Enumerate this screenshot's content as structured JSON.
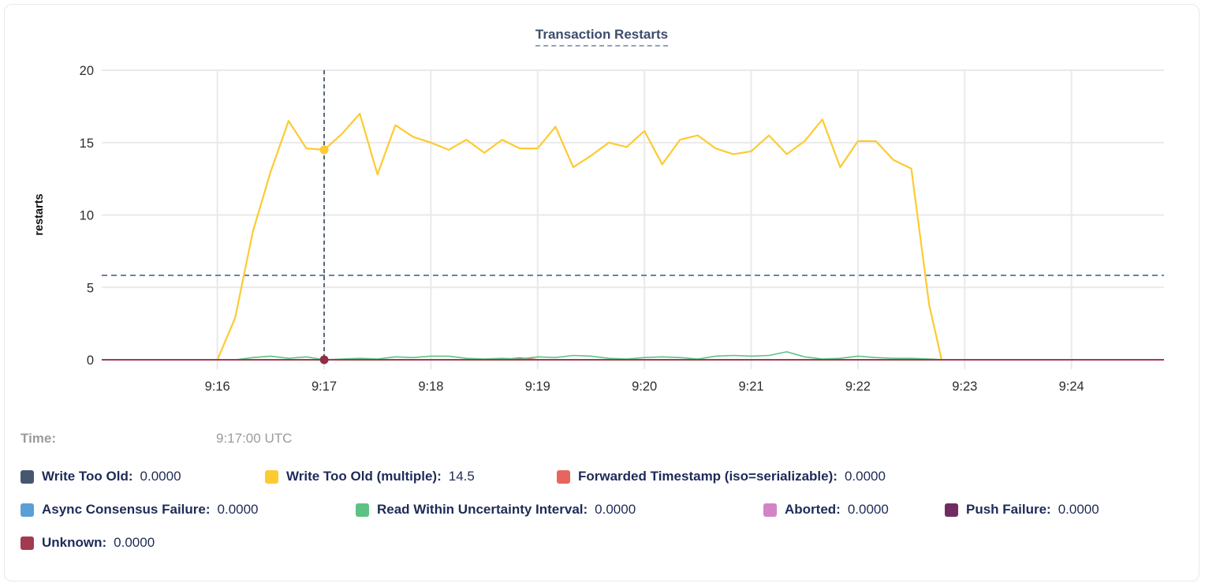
{
  "title": "Transaction Restarts",
  "time": {
    "label": "Time:",
    "value": "9:17:00 UTC"
  },
  "chart_data": {
    "type": "line",
    "title": "Transaction Restarts",
    "xlabel": "",
    "ylabel": "restarts",
    "ylim": [
      0,
      20
    ],
    "y_ticks": [
      0,
      5,
      10,
      15,
      20
    ],
    "x_ticks": [
      "9:16",
      "9:17",
      "9:18",
      "9:19",
      "9:20",
      "9:21",
      "9:22",
      "9:23",
      "9:24"
    ],
    "x_domain": [
      "9:14:55",
      "9:24:52"
    ],
    "grid": true,
    "threshold_line": {
      "value": 5.83,
      "style": "dashed",
      "color": "#6884a3"
    },
    "crosshair": {
      "time": "9:17:00",
      "color": "#33475e",
      "points": [
        {
          "series": "Write Too Old (multiple)",
          "value": 14.5,
          "color": "#fdca32"
        },
        {
          "series": "Unknown",
          "value": 0,
          "color": "#8e2f44"
        }
      ]
    },
    "series": [
      {
        "name": "Write Too Old",
        "color": "#475670",
        "width": 2,
        "points": [
          [
            "9:14:55",
            0
          ],
          [
            "9:24:52",
            0
          ]
        ]
      },
      {
        "name": "Async Consensus Failure",
        "color": "#5a9fd6",
        "width": 2,
        "points": [
          [
            "9:14:55",
            0
          ],
          [
            "9:24:52",
            0
          ]
        ]
      },
      {
        "name": "Aborted",
        "color": "#d483c6",
        "width": 2,
        "points": [
          [
            "9:14:55",
            0
          ],
          [
            "9:24:52",
            0
          ]
        ]
      },
      {
        "name": "Push Failure",
        "color": "#702b62",
        "width": 2,
        "points": [
          [
            "9:14:55",
            0
          ],
          [
            "9:24:52",
            0
          ]
        ]
      },
      {
        "name": "Forwarded Timestamp (iso=serializable)",
        "color": "#e8655f",
        "width": 2,
        "points": [
          [
            "9:14:55",
            0
          ],
          [
            "9:18:40",
            0
          ],
          [
            "9:18:50",
            0.12
          ],
          [
            "9:19:00",
            0
          ],
          [
            "9:24:52",
            0
          ]
        ]
      },
      {
        "name": "Read Within Uncertainty Interval",
        "color": "#5dc384",
        "width": 1.6,
        "points": [
          [
            "9:16:10",
            0
          ],
          [
            "9:16:20",
            0.15
          ],
          [
            "9:16:30",
            0.25
          ],
          [
            "9:16:40",
            0.1
          ],
          [
            "9:16:50",
            0.2
          ],
          [
            "9:17:00",
            0
          ],
          [
            "9:17:10",
            0.05
          ],
          [
            "9:17:20",
            0.1
          ],
          [
            "9:17:30",
            0.05
          ],
          [
            "9:17:40",
            0.2
          ],
          [
            "9:17:50",
            0.15
          ],
          [
            "9:18:00",
            0.25
          ],
          [
            "9:18:10",
            0.25
          ],
          [
            "9:18:20",
            0.1
          ],
          [
            "9:18:30",
            0.05
          ],
          [
            "9:18:40",
            0.1
          ],
          [
            "9:18:50",
            0.05
          ],
          [
            "9:19:00",
            0.2
          ],
          [
            "9:19:10",
            0.15
          ],
          [
            "9:19:20",
            0.3
          ],
          [
            "9:19:30",
            0.25
          ],
          [
            "9:19:40",
            0.1
          ],
          [
            "9:19:50",
            0.05
          ],
          [
            "9:20:00",
            0.15
          ],
          [
            "9:20:10",
            0.2
          ],
          [
            "9:20:20",
            0.15
          ],
          [
            "9:20:30",
            0.05
          ],
          [
            "9:20:40",
            0.25
          ],
          [
            "9:20:50",
            0.3
          ],
          [
            "9:21:00",
            0.25
          ],
          [
            "9:21:10",
            0.3
          ],
          [
            "9:21:20",
            0.55
          ],
          [
            "9:21:30",
            0.2
          ],
          [
            "9:21:40",
            0.05
          ],
          [
            "9:21:50",
            0.1
          ],
          [
            "9:22:00",
            0.25
          ],
          [
            "9:22:10",
            0.15
          ],
          [
            "9:22:20",
            0.1
          ],
          [
            "9:22:30",
            0.1
          ],
          [
            "9:22:40",
            0.05
          ],
          [
            "9:22:50",
            0
          ]
        ]
      },
      {
        "name": "Write Too Old (multiple)",
        "color": "#fdca32",
        "width": 2.2,
        "points": [
          [
            "9:16:00",
            0
          ],
          [
            "9:16:10",
            2.9
          ],
          [
            "9:16:20",
            8.9
          ],
          [
            "9:16:30",
            13.0
          ],
          [
            "9:16:40",
            16.5
          ],
          [
            "9:16:50",
            14.6
          ],
          [
            "9:17:00",
            14.5
          ],
          [
            "9:17:10",
            15.6
          ],
          [
            "9:17:20",
            17.0
          ],
          [
            "9:17:30",
            12.8
          ],
          [
            "9:17:40",
            16.2
          ],
          [
            "9:17:50",
            15.4
          ],
          [
            "9:18:00",
            15.0
          ],
          [
            "9:18:10",
            14.5
          ],
          [
            "9:18:20",
            15.2
          ],
          [
            "9:18:30",
            14.3
          ],
          [
            "9:18:40",
            15.2
          ],
          [
            "9:18:50",
            14.6
          ],
          [
            "9:19:00",
            14.6
          ],
          [
            "9:19:10",
            16.1
          ],
          [
            "9:19:20",
            13.3
          ],
          [
            "9:19:30",
            14.1
          ],
          [
            "9:19:40",
            15.0
          ],
          [
            "9:19:50",
            14.7
          ],
          [
            "9:20:00",
            15.8
          ],
          [
            "9:20:10",
            13.5
          ],
          [
            "9:20:20",
            15.2
          ],
          [
            "9:20:30",
            15.5
          ],
          [
            "9:20:40",
            14.6
          ],
          [
            "9:20:50",
            14.2
          ],
          [
            "9:21:00",
            14.4
          ],
          [
            "9:21:10",
            15.5
          ],
          [
            "9:21:20",
            14.2
          ],
          [
            "9:21:30",
            15.1
          ],
          [
            "9:21:40",
            16.6
          ],
          [
            "9:21:50",
            13.3
          ],
          [
            "9:22:00",
            15.1
          ],
          [
            "9:22:10",
            15.1
          ],
          [
            "9:22:20",
            13.8
          ],
          [
            "9:22:30",
            13.2
          ],
          [
            "9:22:40",
            3.8
          ],
          [
            "9:22:47",
            0
          ]
        ]
      },
      {
        "name": "Unknown",
        "color": "#a23a52",
        "width": 2,
        "points": [
          [
            "9:14:55",
            0
          ],
          [
            "9:24:52",
            0
          ]
        ]
      }
    ]
  },
  "legend": {
    "rows": [
      [
        {
          "label": "Write Too Old:",
          "value": "0.0000",
          "color": "#475670"
        },
        {
          "label": "Write Too Old (multiple):",
          "value": "14.5",
          "color": "#fdca32"
        },
        {
          "label": "Forwarded Timestamp (iso=serializable):",
          "value": "0.0000",
          "color": "#e8655f"
        }
      ],
      [
        {
          "label": "Async Consensus Failure:",
          "value": "0.0000",
          "color": "#5a9fd6"
        },
        {
          "label": "Read Within Uncertainty Interval:",
          "value": "0.0000",
          "color": "#5dc384"
        },
        {
          "label": "Aborted:",
          "value": "0.0000",
          "color": "#d483c6"
        },
        {
          "label": "Push Failure:",
          "value": "0.0000",
          "color": "#702b62"
        }
      ],
      [
        {
          "label": "Unknown:",
          "value": "0.0000",
          "color": "#a23a52"
        }
      ]
    ]
  }
}
